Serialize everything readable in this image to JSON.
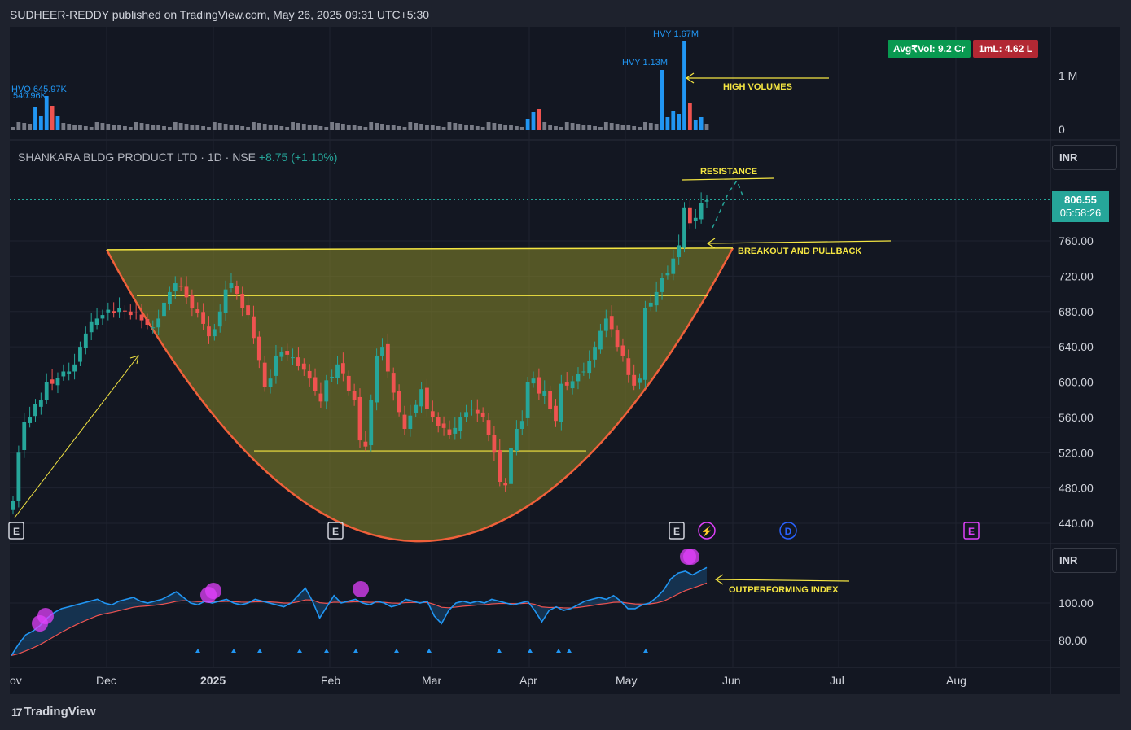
{
  "header": {
    "text": "SUDHEER-REDDY published on TradingView.com, May 26, 2025 09:31 UTC+5:30"
  },
  "symbol": {
    "name": "SHANKARA BLDG PRODUCT LTD · 1D · NSE",
    "change": "+8.75 (+1.10%)"
  },
  "badges": {
    "avg_vol": "Avg₹Vol: 9.2 Cr",
    "one_ml": "1mL: 4.62 L"
  },
  "currency": {
    "main": "INR",
    "indicator": "INR"
  },
  "last_price": {
    "price": "806.55",
    "countdown": "05:58:26"
  },
  "colors": {
    "up": "#26a69a",
    "down": "#ef5350",
    "cup_fill": "#8a8a2a",
    "cup_edge": "#f0603a",
    "annotation": "#f5e642",
    "rs_line": "#2196f3",
    "rs_ma": "#ef5350",
    "marker": "#e040fb"
  },
  "annotations": {
    "high_volumes": "HIGH VOLUMES",
    "resistance": "RESISTANCE",
    "breakout": "BREAKOUT AND PULLBACK",
    "outperforming": "OUTPERFORMING INDEX"
  },
  "volume_labels": {
    "hvq_top": "HVQ 645.97K",
    "hvq_sub": "540.96K",
    "hvy1": "HVY 1.13M",
    "hvy2": "HVY 1.67M"
  },
  "volume_axis": [
    "1 M",
    "0"
  ],
  "price_axis": [
    "760.00",
    "720.00",
    "680.00",
    "640.00",
    "600.00",
    "560.00",
    "520.00",
    "480.00",
    "440.00"
  ],
  "indicator_axis": [
    "100.00",
    "80.00"
  ],
  "time_axis": [
    "ov",
    "Dec",
    "2025",
    "Feb",
    "Mar",
    "Apr",
    "May",
    "Jun",
    "Jul",
    "Aug"
  ],
  "events": [
    "E",
    "E",
    "E",
    "⚡",
    "D",
    "E"
  ],
  "footer": {
    "logo": "TradingView"
  },
  "chart_data": {
    "type": "candlestick",
    "title": "SHANKARA BLDG PRODUCT LTD · 1D · NSE",
    "ylim": [
      420,
      830
    ],
    "last_price": 806.55,
    "pattern": {
      "name": "cup",
      "rim_level": 750,
      "bottom_level": 433
    },
    "resistance_level": 806,
    "inner_levels": [
      698,
      522
    ],
    "closes": [
      465,
      520,
      555,
      560,
      575,
      580,
      600,
      598,
      605,
      612,
      612,
      620,
      640,
      655,
      668,
      672,
      676,
      682,
      678,
      684,
      680,
      676,
      678,
      670,
      665,
      662,
      672,
      690,
      702,
      712,
      708,
      696,
      684,
      678,
      666,
      652,
      660,
      680,
      705,
      712,
      700,
      684,
      676,
      650,
      625,
      594,
      604,
      630,
      634,
      631,
      628,
      618,
      614,
      604,
      590,
      578,
      602,
      606,
      620,
      610,
      590,
      580,
      534,
      527,
      580,
      630,
      640,
      612,
      588,
      566,
      547,
      562,
      574,
      592,
      570,
      560,
      550,
      548,
      540,
      548,
      560,
      566,
      570,
      564,
      560,
      540,
      520,
      487,
      483,
      525,
      547,
      556,
      600,
      604,
      587,
      590,
      570,
      556,
      598,
      596,
      601,
      609,
      612,
      624,
      640,
      658,
      672,
      660,
      640,
      630,
      608,
      596,
      604,
      684,
      690,
      702,
      718,
      724,
      740,
      755,
      798,
      780,
      786,
      803,
      806
    ],
    "volume_series": {
      "name": "Volume",
      "peaks": [
        {
          "label": "HVQ",
          "value": 645970
        },
        {
          "label": "HVY",
          "value": 1130000
        },
        {
          "label": "HVY",
          "value": 1670000
        }
      ]
    },
    "indicator": {
      "name": "Relative strength",
      "ylim": [
        70,
        120
      ],
      "values": [
        72,
        78,
        83,
        85,
        88,
        92,
        95,
        97,
        98,
        99,
        100,
        101,
        102,
        100,
        99,
        101,
        102,
        103,
        101,
        100,
        101,
        102,
        104,
        106,
        103,
        100,
        99,
        101,
        100,
        101,
        102,
        100,
        99,
        100,
        102,
        101,
        100,
        99,
        98,
        100,
        104,
        108,
        101,
        92,
        98,
        104,
        100,
        101,
        102,
        100,
        99,
        101,
        100,
        98,
        99,
        102,
        101,
        100,
        101,
        93,
        89,
        96,
        100,
        101,
        100,
        101,
        100,
        102,
        101,
        100,
        99,
        100,
        101,
        96,
        90,
        96,
        98,
        96,
        97,
        99,
        101,
        102,
        103,
        102,
        104,
        101,
        97,
        97,
        99,
        100,
        103,
        107,
        113,
        116,
        117,
        115,
        117,
        119
      ]
    },
    "indicator_ma": {
      "name": "RS moving average"
    }
  }
}
